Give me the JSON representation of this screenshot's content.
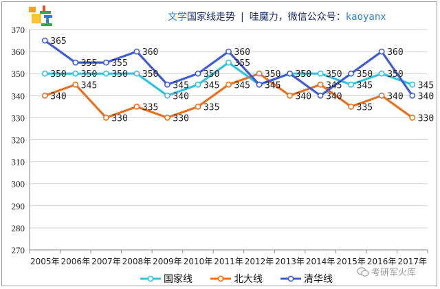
{
  "header": {
    "part1": "文学",
    "part2": "国家线走势",
    "separator": "|",
    "part3": "哇魔力，微信公众号：",
    "part4": "kaoyanx"
  },
  "watermark": "考研军火库",
  "chart_data": {
    "type": "line",
    "x": [
      "2005年",
      "2006年",
      "2007年",
      "2008年",
      "2009年",
      "2010年",
      "2011年",
      "2012年",
      "2013年",
      "2014年",
      "2015年",
      "2016年",
      "2017年"
    ],
    "ylim": [
      270,
      370
    ],
    "yticks": [
      270,
      280,
      290,
      300,
      310,
      320,
      330,
      340,
      350,
      360,
      370
    ],
    "grid": true,
    "legend_position": "bottom",
    "series": [
      {
        "name": "国家线",
        "color": "#2ec4e0",
        "values": [
          350,
          350,
          350,
          350,
          340,
          345,
          355,
          345,
          350,
          350,
          345,
          350,
          345
        ]
      },
      {
        "name": "北大线",
        "color": "#e8701e",
        "values": [
          340,
          345,
          330,
          335,
          330,
          335,
          345,
          350,
          340,
          345,
          335,
          340,
          330
        ]
      },
      {
        "name": "清华线",
        "color": "#3f5bd6",
        "values": [
          365,
          355,
          355,
          360,
          345,
          350,
          360,
          345,
          350,
          340,
          350,
          360,
          340
        ]
      }
    ]
  }
}
